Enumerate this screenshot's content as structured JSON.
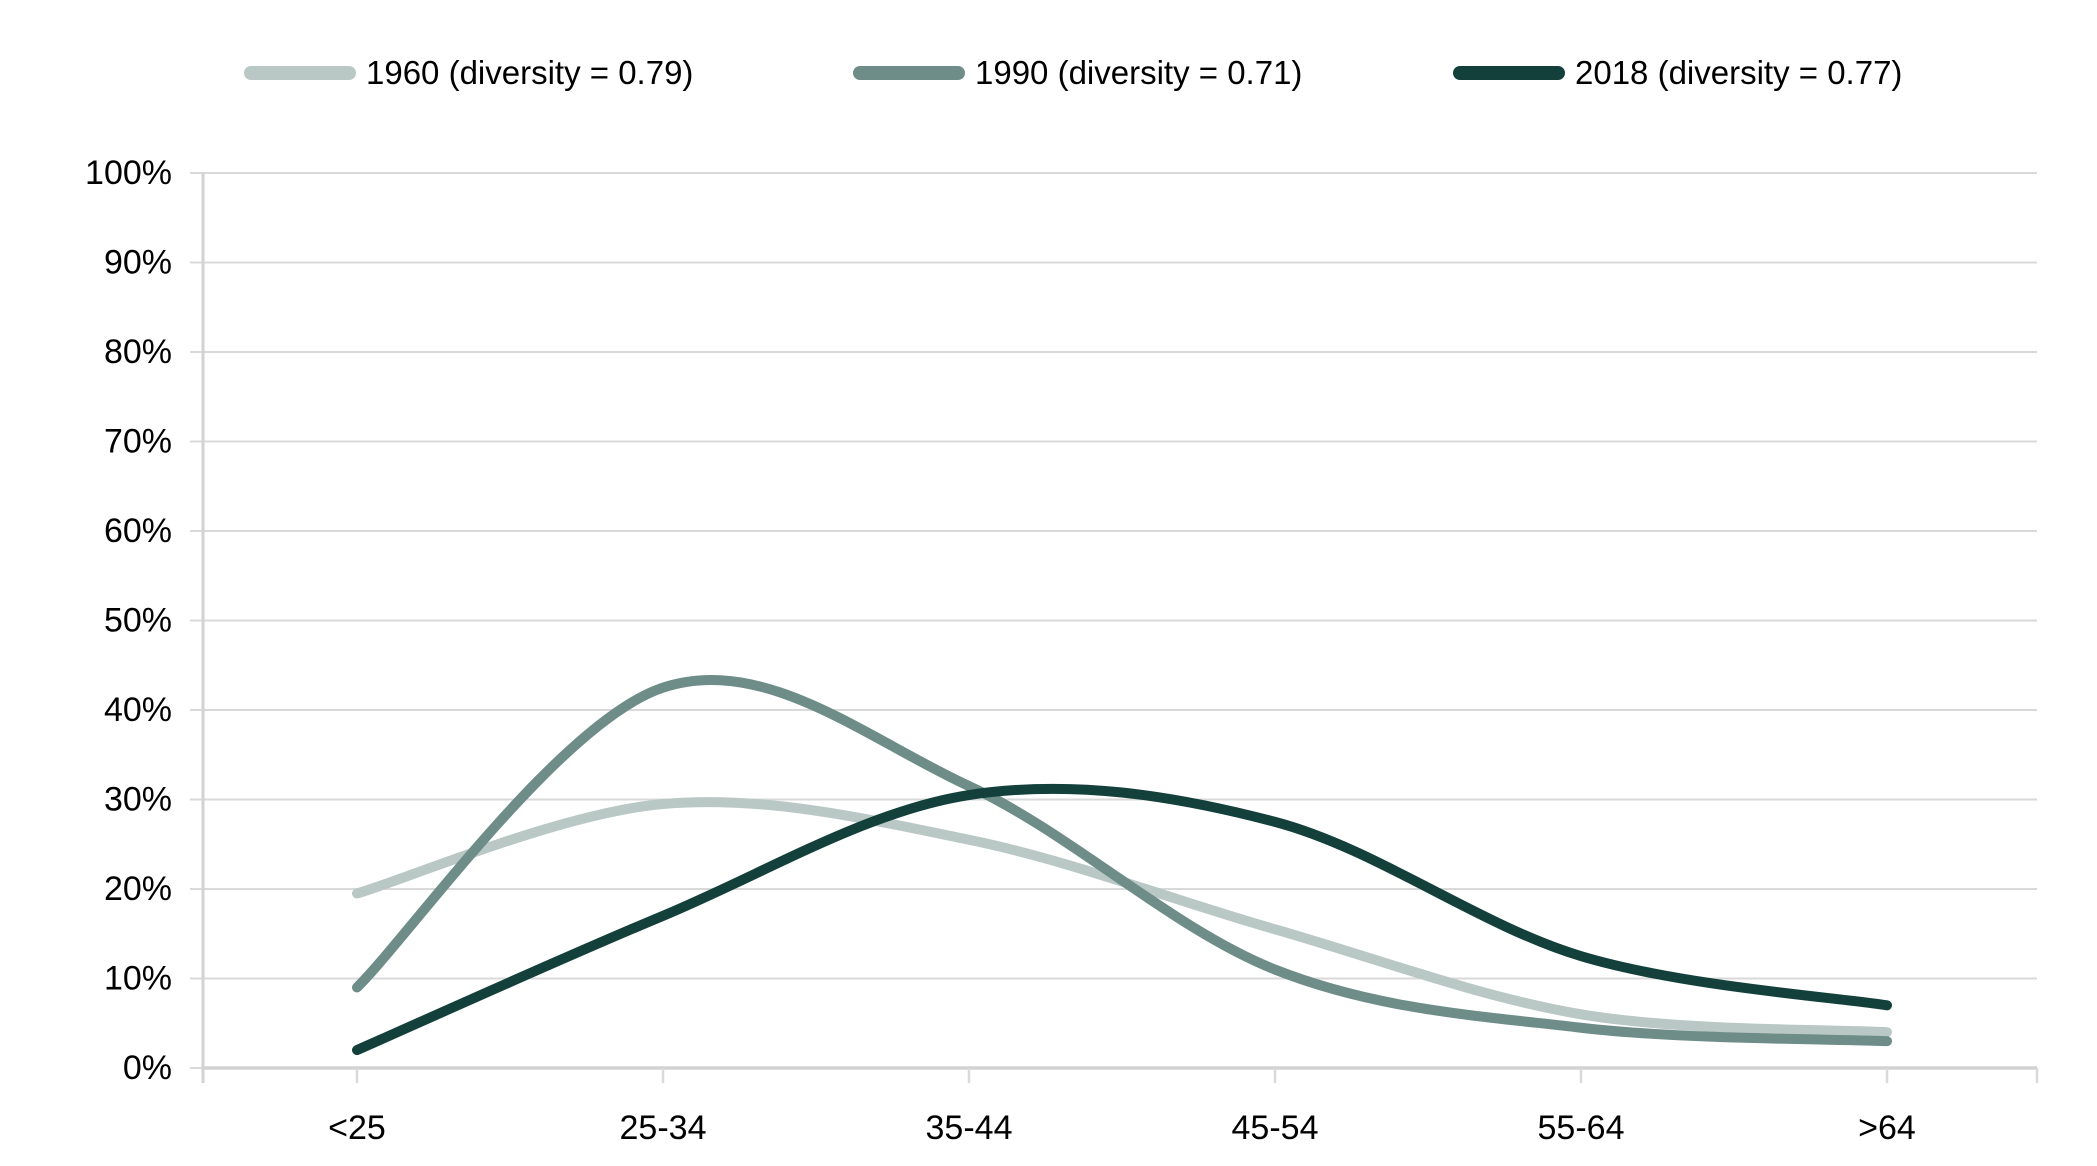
{
  "chart_data": {
    "type": "line",
    "title": "",
    "xlabel": "",
    "ylabel": "",
    "categories": [
      "<25",
      "25-34",
      "35-44",
      "45-54",
      "55-64",
      ">64"
    ],
    "series": [
      {
        "name": "1960",
        "legend": "1960 (diversity = 0.79)",
        "diversity": "0.79",
        "color": "#b9c8c4",
        "values": [
          19.5,
          29.5,
          25.5,
          15.5,
          6,
          4
        ]
      },
      {
        "name": "1990",
        "legend": "1990 (diversity = 0.71)",
        "diversity": "0.71",
        "color": "#6e8d88",
        "values": [
          9,
          42.5,
          31.5,
          11,
          4.5,
          3
        ]
      },
      {
        "name": "2018",
        "legend": "2018 (diversity = 0.77)",
        "diversity": "0.77",
        "color": "#14403c",
        "values": [
          2,
          17,
          30.5,
          27.5,
          12.5,
          7
        ]
      }
    ],
    "y_axis": {
      "min": 0,
      "max": 100,
      "step": 10,
      "format": "percent",
      "tick_labels": [
        "0%",
        "10%",
        "20%",
        "30%",
        "40%",
        "50%",
        "60%",
        "70%",
        "80%",
        "90%",
        "100%"
      ]
    },
    "grid": true,
    "legend_position": "top",
    "line_style": {
      "smooth": true,
      "width": 10
    }
  },
  "colors": {
    "gridline": "#d9d9d9",
    "axis": "#d2d2d2",
    "text": "#000000",
    "background": "#ffffff"
  }
}
